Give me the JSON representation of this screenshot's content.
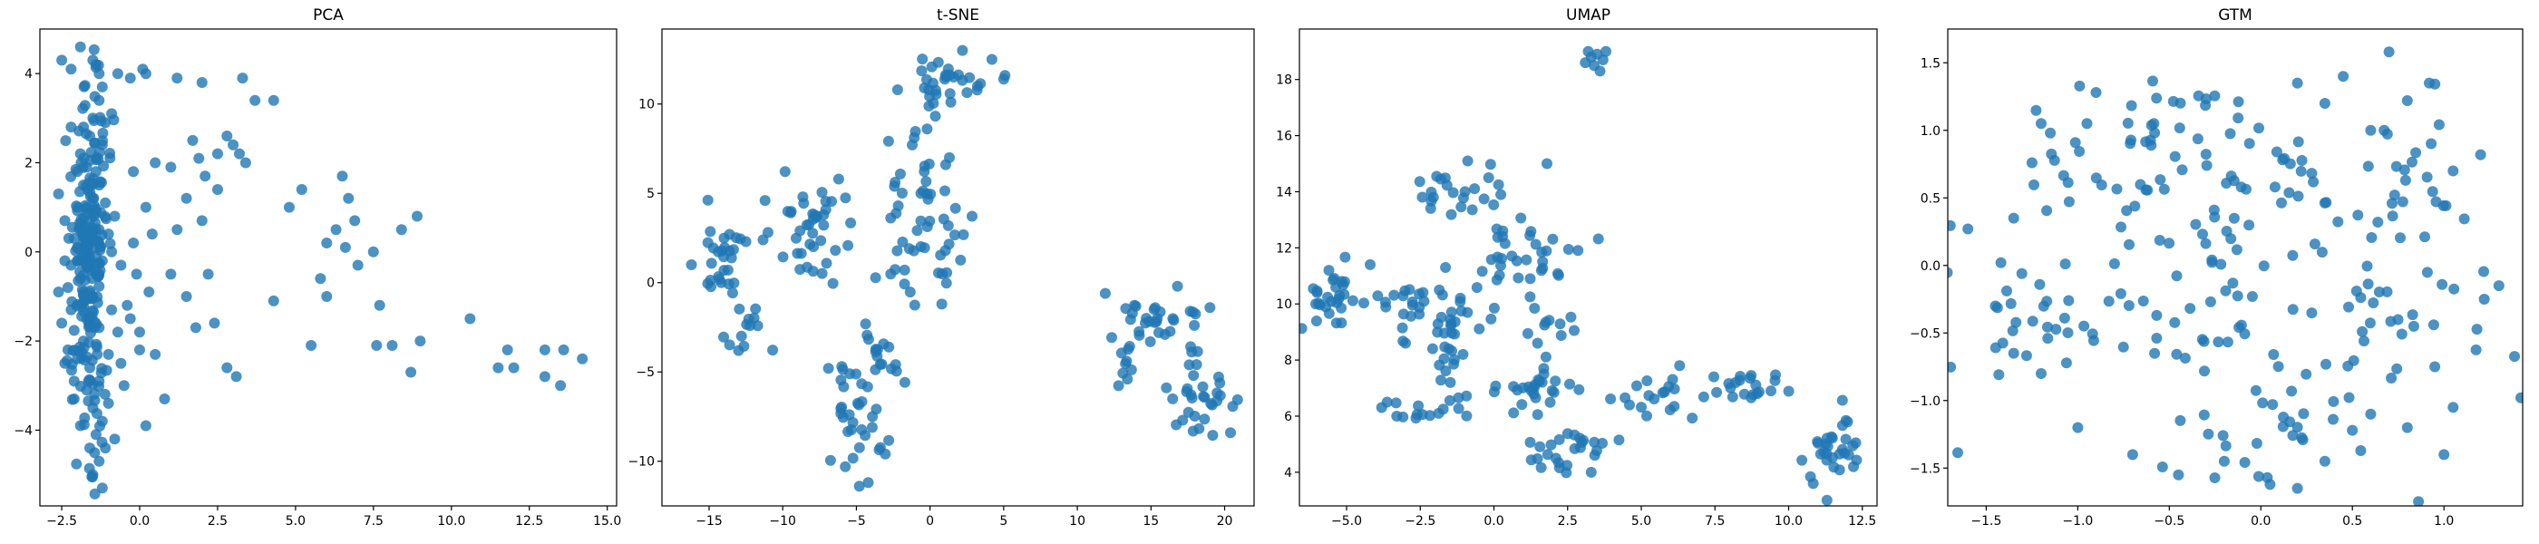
{
  "chart_data": [
    {
      "type": "scatter",
      "title": "PCA",
      "xlabel": "",
      "ylabel": "",
      "xlim": [
        -3.2,
        15.3
      ],
      "ylim": [
        -5.7,
        5.0
      ],
      "xticks": [
        -2.5,
        0.0,
        2.5,
        5.0,
        7.5,
        10.0,
        12.5,
        15.0
      ],
      "yticks": [
        -4,
        -2,
        0,
        2,
        4
      ],
      "xtick_labels": [
        "−2.5",
        "0.0",
        "2.5",
        "5.0",
        "7.5",
        "10.0",
        "12.5",
        "15.0"
      ],
      "ytick_labels": [
        "−4",
        "−2",
        "0",
        "2",
        "4"
      ],
      "color": "#1f77b4",
      "points": [
        [
          -2.5,
          4.3
        ],
        [
          -1.9,
          4.6
        ],
        [
          -1.5,
          4.3
        ],
        [
          -1.3,
          4.0
        ],
        [
          0.1,
          4.1
        ],
        [
          0.2,
          4.0
        ],
        [
          -0.3,
          3.9
        ],
        [
          1.2,
          3.9
        ],
        [
          2.0,
          3.8
        ],
        [
          3.3,
          3.9
        ],
        [
          3.7,
          3.4
        ],
        [
          4.3,
          3.4
        ],
        [
          -1.3,
          3.4
        ],
        [
          -1.5,
          3.0
        ],
        [
          -1.8,
          2.8
        ],
        [
          -1.6,
          2.6
        ],
        [
          -1.2,
          2.4
        ],
        [
          -2.2,
          2.8
        ],
        [
          -1.9,
          2.2
        ],
        [
          -1.7,
          1.9
        ],
        [
          -1.4,
          1.8
        ],
        [
          -1.3,
          1.5
        ],
        [
          -1.8,
          1.5
        ],
        [
          -1.5,
          1.2
        ],
        [
          -1.7,
          1.0
        ],
        [
          -1.4,
          0.9
        ],
        [
          -1.6,
          0.7
        ],
        [
          -1.9,
          0.6
        ],
        [
          -1.3,
          0.5
        ],
        [
          -1.5,
          0.3
        ],
        [
          -1.8,
          0.2
        ],
        [
          -2.0,
          0.1
        ],
        [
          -1.7,
          0.0
        ],
        [
          -1.4,
          -0.1
        ],
        [
          -1.9,
          -0.2
        ],
        [
          -2.2,
          -0.3
        ],
        [
          -1.6,
          -0.4
        ],
        [
          -1.3,
          -0.5
        ],
        [
          -1.9,
          -0.6
        ],
        [
          -2.4,
          -0.2
        ],
        [
          -2.1,
          0.3
        ],
        [
          -2.3,
          -0.8
        ],
        [
          -1.8,
          -0.9
        ],
        [
          -1.5,
          -1.0
        ],
        [
          -2.2,
          -1.3
        ],
        [
          -1.7,
          -1.5
        ],
        [
          -1.3,
          -1.7
        ],
        [
          -1.8,
          -2.0
        ],
        [
          -2.3,
          -2.2
        ],
        [
          -2.0,
          -2.4
        ],
        [
          -1.6,
          -2.6
        ],
        [
          -1.3,
          -2.9
        ],
        [
          -1.7,
          -3.1
        ],
        [
          -2.1,
          -3.3
        ],
        [
          -1.5,
          -3.5
        ],
        [
          -1.2,
          -3.8
        ],
        [
          -1.4,
          -4.1
        ],
        [
          -1.1,
          -4.4
        ],
        [
          -1.3,
          -4.7
        ],
        [
          -1.5,
          -5.0
        ],
        [
          -1.2,
          -5.3
        ],
        [
          -0.8,
          -4.2
        ],
        [
          -0.5,
          -3.0
        ],
        [
          0.2,
          -3.9
        ],
        [
          0.5,
          -2.3
        ],
        [
          0.0,
          -2.2
        ],
        [
          -0.3,
          -1.5
        ],
        [
          0.3,
          -0.9
        ],
        [
          -0.1,
          -0.5
        ],
        [
          0.4,
          0.4
        ],
        [
          0.2,
          1.0
        ],
        [
          -0.2,
          1.8
        ],
        [
          0.5,
          2.0
        ],
        [
          1.0,
          1.9
        ],
        [
          1.7,
          2.5
        ],
        [
          1.9,
          2.1
        ],
        [
          2.1,
          1.7
        ],
        [
          2.5,
          1.4
        ],
        [
          3.0,
          2.4
        ],
        [
          3.2,
          2.2
        ],
        [
          2.8,
          2.6
        ],
        [
          1.5,
          1.2
        ],
        [
          1.2,
          0.5
        ],
        [
          1.0,
          -0.5
        ],
        [
          1.5,
          -1.0
        ],
        [
          1.8,
          -1.7
        ],
        [
          2.4,
          -1.6
        ],
        [
          2.8,
          -2.6
        ],
        [
          3.1,
          -2.8
        ],
        [
          4.3,
          -1.1
        ],
        [
          4.8,
          1.0
        ],
        [
          5.2,
          1.4
        ],
        [
          5.5,
          -2.1
        ],
        [
          6.0,
          -1.0
        ],
        [
          6.0,
          0.2
        ],
        [
          6.3,
          0.5
        ],
        [
          6.5,
          1.7
        ],
        [
          6.7,
          1.2
        ],
        [
          6.9,
          0.7
        ],
        [
          7.5,
          0.0
        ],
        [
          7.7,
          -1.2
        ],
        [
          7.6,
          -2.1
        ],
        [
          8.1,
          -2.1
        ],
        [
          8.4,
          0.5
        ],
        [
          8.7,
          -2.7
        ],
        [
          8.9,
          0.8
        ],
        [
          9.0,
          -2.0
        ],
        [
          10.6,
          -1.5
        ],
        [
          11.5,
          -2.6
        ],
        [
          11.8,
          -2.2
        ],
        [
          12.0,
          -2.6
        ],
        [
          13.0,
          -2.2
        ],
        [
          13.0,
          -2.8
        ],
        [
          13.5,
          -3.0
        ],
        [
          13.6,
          -2.2
        ],
        [
          14.2,
          -2.4
        ],
        [
          -0.9,
          0.0
        ],
        [
          -0.6,
          -0.3
        ],
        [
          -1.0,
          0.4
        ],
        [
          -1.2,
          -0.2
        ],
        [
          -0.8,
          0.8
        ],
        [
          -1.1,
          1.1
        ],
        [
          -0.9,
          -1.3
        ],
        [
          -0.7,
          -1.8
        ],
        [
          -1.0,
          -2.3
        ],
        [
          -0.6,
          -2.5
        ],
        [
          -2.5,
          -1.6
        ],
        [
          -2.6,
          -0.9
        ],
        [
          -2.4,
          0.7
        ],
        [
          -2.6,
          1.3
        ],
        [
          -2.0,
          1.8
        ],
        [
          -1.1,
          2.9
        ],
        [
          -0.9,
          3.1
        ],
        [
          -1.2,
          3.7
        ],
        [
          -0.7,
          4.0
        ],
        [
          -1.4,
          4.2
        ],
        [
          -2.2,
          4.1
        ],
        [
          -1.0,
          -3.4
        ],
        [
          -1.6,
          -4.4
        ],
        [
          -1.9,
          -3.9
        ],
        [
          -2.1,
          -2.9
        ],
        [
          -2.4,
          -2.5
        ],
        [
          -0.4,
          -1.2
        ],
        [
          -0.2,
          0.2
        ],
        [
          0.0,
          -1.8
        ],
        [
          2.2,
          -0.5
        ],
        [
          0.8,
          -3.3
        ],
        [
          2.0,
          0.7
        ],
        [
          3.4,
          2.0
        ],
        [
          2.5,
          2.2
        ],
        [
          6.6,
          0.1
        ],
        [
          5.8,
          -0.6
        ],
        [
          7.0,
          -0.3
        ]
      ],
      "clusters": [
        {
          "cx": -1.6,
          "cy": 0.0,
          "sx": 0.28,
          "sy": 1.2,
          "n": 140
        },
        {
          "cx": -1.7,
          "cy": -2.6,
          "sx": 0.3,
          "sy": 0.9,
          "n": 40
        },
        {
          "cx": -1.6,
          "cy": 2.5,
          "sx": 0.35,
          "sy": 0.8,
          "n": 25
        }
      ]
    },
    {
      "type": "scatter",
      "title": "t-SNE",
      "xlabel": "",
      "ylabel": "",
      "xlim": [
        -18.2,
        22.0
      ],
      "ylim": [
        -12.5,
        14.2
      ],
      "xticks": [
        -15,
        -10,
        -5,
        0,
        5,
        10,
        15,
        20
      ],
      "yticks": [
        -10,
        -5,
        0,
        5,
        10
      ],
      "xtick_labels": [
        "−15",
        "−10",
        "−5",
        "0",
        "5",
        "10",
        "15",
        "20"
      ],
      "ytick_labels": [
        "−10",
        "−5",
        "0",
        "5",
        "10"
      ],
      "color": "#1f77b4",
      "points": [
        [
          -16.2,
          1.0
        ],
        [
          -13.0,
          -3.8
        ],
        [
          -11.2,
          4.6
        ],
        [
          -6.2,
          5.8
        ],
        [
          -2.2,
          10.8
        ],
        [
          2.2,
          13.0
        ],
        [
          5.0,
          11.4
        ],
        [
          -0.2,
          8.6
        ],
        [
          0.8,
          -1.2
        ],
        [
          -4.8,
          -11.4
        ],
        [
          -2.8,
          -3.6
        ],
        [
          -6.9,
          -4.8
        ],
        [
          11.9,
          -0.6
        ],
        [
          13.4,
          -5.4
        ],
        [
          16.8,
          -0.2
        ],
        [
          20.4,
          -8.4
        ],
        [
          17.6,
          -4.6
        ],
        [
          19.0,
          -1.4
        ]
      ],
      "clusters": [
        {
          "cx": -14.0,
          "cy": 1.5,
          "sx": 0.9,
          "sy": 1.6,
          "n": 28
        },
        {
          "cx": -8.0,
          "cy": 2.8,
          "sx": 1.4,
          "sy": 1.6,
          "n": 40
        },
        {
          "cx": -12.5,
          "cy": -2.8,
          "sx": 1.0,
          "sy": 0.5,
          "n": 12
        },
        {
          "cx": 1.5,
          "cy": 11.0,
          "sx": 1.5,
          "sy": 0.9,
          "n": 30
        },
        {
          "cx": -0.5,
          "cy": 6.0,
          "sx": 1.0,
          "sy": 1.6,
          "n": 20
        },
        {
          "cx": 0.0,
          "cy": 2.0,
          "sx": 1.5,
          "sy": 1.8,
          "n": 35
        },
        {
          "cx": -3.0,
          "cy": -4.0,
          "sx": 1.3,
          "sy": 1.0,
          "n": 18
        },
        {
          "cx": -5.0,
          "cy": -8.0,
          "sx": 0.9,
          "sy": 1.7,
          "n": 30
        },
        {
          "cx": 15.5,
          "cy": -2.0,
          "sx": 1.4,
          "sy": 0.9,
          "n": 28
        },
        {
          "cx": 13.2,
          "cy": -4.5,
          "sx": 0.6,
          "sy": 0.8,
          "n": 8
        },
        {
          "cx": 18.5,
          "cy": -6.3,
          "sx": 1.1,
          "sy": 1.2,
          "n": 30
        }
      ]
    },
    {
      "type": "scatter",
      "title": "UMAP",
      "xlabel": "",
      "ylabel": "",
      "xlim": [
        -6.6,
        13.0
      ],
      "ylim": [
        2.8,
        19.8
      ],
      "xticks": [
        -5.0,
        -2.5,
        0.0,
        2.5,
        5.0,
        7.5,
        10.0,
        12.5
      ],
      "yticks": [
        4,
        6,
        8,
        10,
        12,
        14,
        16,
        18
      ],
      "xtick_labels": [
        "−5.0",
        "−2.5",
        "0.0",
        "2.5",
        "5.0",
        "7.5",
        "10.0",
        "12.5"
      ],
      "ytick_labels": [
        "4",
        "6",
        "8",
        "10",
        "12",
        "14",
        "16",
        "18"
      ],
      "color": "#1f77b4",
      "points": [
        [
          3.2,
          19.0
        ],
        [
          3.5,
          18.9
        ],
        [
          3.7,
          18.7
        ],
        [
          3.4,
          18.5
        ],
        [
          3.6,
          18.3
        ],
        [
          3.3,
          18.8
        ],
        [
          3.8,
          19.0
        ],
        [
          3.1,
          18.6
        ],
        [
          -6.0,
          10.4
        ],
        [
          -5.6,
          11.2
        ],
        [
          -4.2,
          11.4
        ],
        [
          1.8,
          15.0
        ],
        [
          4.6,
          6.4
        ],
        [
          6.3,
          7.8
        ],
        [
          8.2,
          7.2
        ],
        [
          9.4,
          6.9
        ],
        [
          11.3,
          3.0
        ],
        [
          12.0,
          5.8
        ],
        [
          12.2,
          4.2
        ],
        [
          3.3,
          4.0
        ],
        [
          2.1,
          4.5
        ],
        [
          -3.3,
          6.0
        ],
        [
          -3.0,
          8.6
        ],
        [
          0.3,
          12.6
        ]
      ],
      "clusters": [
        {
          "cx": -5.5,
          "cy": 10.1,
          "sx": 0.4,
          "sy": 0.6,
          "n": 25
        },
        {
          "cx": -3.5,
          "cy": 10.0,
          "sx": 0.9,
          "sy": 0.3,
          "n": 18
        },
        {
          "cx": -1.8,
          "cy": 9.4,
          "sx": 0.7,
          "sy": 0.7,
          "n": 25
        },
        {
          "cx": -1.6,
          "cy": 7.5,
          "sx": 0.35,
          "sy": 0.7,
          "n": 12
        },
        {
          "cx": -2.5,
          "cy": 6.3,
          "sx": 0.7,
          "sy": 0.25,
          "n": 14
        },
        {
          "cx": -1.2,
          "cy": 13.9,
          "sx": 0.8,
          "sy": 0.6,
          "n": 25
        },
        {
          "cx": 1.0,
          "cy": 11.6,
          "sx": 0.9,
          "sy": 0.6,
          "n": 28
        },
        {
          "cx": 1.9,
          "cy": 9.0,
          "sx": 0.4,
          "sy": 1.1,
          "n": 16
        },
        {
          "cx": 1.3,
          "cy": 6.8,
          "sx": 0.9,
          "sy": 0.6,
          "n": 25
        },
        {
          "cx": 2.4,
          "cy": 5.0,
          "sx": 0.9,
          "sy": 0.5,
          "n": 25
        },
        {
          "cx": 5.8,
          "cy": 6.8,
          "sx": 0.9,
          "sy": 0.4,
          "n": 16
        },
        {
          "cx": 8.3,
          "cy": 7.0,
          "sx": 0.8,
          "sy": 0.35,
          "n": 18
        },
        {
          "cx": 11.5,
          "cy": 4.6,
          "sx": 0.45,
          "sy": 0.8,
          "n": 28
        }
      ]
    },
    {
      "type": "scatter",
      "title": "GTM",
      "xlabel": "",
      "ylabel": "",
      "xlim": [
        -1.71,
        1.43
      ],
      "ylim": [
        -1.78,
        1.75
      ],
      "xticks": [
        -1.5,
        -1.0,
        -0.5,
        0.0,
        0.5,
        1.0
      ],
      "yticks": [
        -1.5,
        -1.0,
        -0.5,
        0.0,
        0.5,
        1.0,
        1.5
      ],
      "xtick_labels": [
        "−1.5",
        "−1.0",
        "−0.5",
        "0.0",
        "0.5",
        "1.0"
      ],
      "ytick_labels": [
        "−1.5",
        "−1.0",
        "−0.5",
        "0.0",
        "0.5",
        "1.0",
        "1.5"
      ],
      "color": "#1f77b4",
      "points": [
        [
          -1.6,
          0.27
        ],
        [
          0.7,
          1.58
        ],
        [
          1.42,
          -0.98
        ],
        [
          1.3,
          -0.15
        ],
        [
          1.2,
          0.82
        ],
        [
          0.8,
          1.22
        ],
        [
          0.92,
          1.35
        ],
        [
          -0.9,
          1.28
        ],
        [
          -0.95,
          1.05
        ],
        [
          -1.15,
          0.98
        ],
        [
          -1.2,
          1.05
        ],
        [
          -1.25,
          0.76
        ],
        [
          -1.35,
          0.35
        ],
        [
          -1.42,
          0.02
        ],
        [
          -1.45,
          -0.3
        ],
        [
          -1.35,
          -0.65
        ],
        [
          -1.2,
          -0.8
        ],
        [
          -1.0,
          -1.2
        ],
        [
          -0.7,
          -1.4
        ],
        [
          -0.45,
          -1.55
        ],
        [
          -0.2,
          -1.45
        ],
        [
          0.05,
          -1.62
        ],
        [
          0.2,
          -1.65
        ],
        [
          0.35,
          -1.45
        ],
        [
          0.5,
          -1.22
        ],
        [
          0.6,
          -1.1
        ],
        [
          0.8,
          -1.2
        ],
        [
          1.0,
          -1.4
        ],
        [
          1.05,
          -1.05
        ],
        [
          0.95,
          -0.75
        ],
        [
          0.6,
          1.0
        ],
        [
          0.35,
          1.2
        ],
        [
          0.2,
          1.35
        ],
        [
          0.45,
          1.4
        ],
        [
          1.05,
          0.7
        ],
        [
          1.22,
          -0.25
        ]
      ],
      "clusters": [
        {
          "cx": -0.5,
          "cy": 1.05,
          "sx": 0.32,
          "sy": 0.15,
          "n": 28
        },
        {
          "cx": -0.8,
          "cy": 0.55,
          "sx": 0.3,
          "sy": 0.2,
          "n": 22
        },
        {
          "cx": 0.0,
          "cy": 0.55,
          "sx": 0.25,
          "sy": 0.25,
          "n": 22
        },
        {
          "cx": -1.2,
          "cy": -0.45,
          "sx": 0.25,
          "sy": 0.3,
          "n": 30
        },
        {
          "cx": -0.5,
          "cy": -0.05,
          "sx": 0.3,
          "sy": 0.25,
          "n": 25
        },
        {
          "cx": -0.1,
          "cy": -0.5,
          "sx": 0.3,
          "sy": 0.2,
          "n": 20
        },
        {
          "cx": 0.0,
          "cy": -1.15,
          "sx": 0.35,
          "sy": 0.25,
          "n": 30
        },
        {
          "cx": 0.9,
          "cy": 0.65,
          "sx": 0.15,
          "sy": 0.35,
          "n": 22
        },
        {
          "cx": 0.85,
          "cy": -0.3,
          "sx": 0.22,
          "sy": 0.35,
          "n": 22
        },
        {
          "cx": 0.45,
          "cy": 0.2,
          "sx": 0.25,
          "sy": 0.35,
          "n": 16
        }
      ]
    }
  ]
}
